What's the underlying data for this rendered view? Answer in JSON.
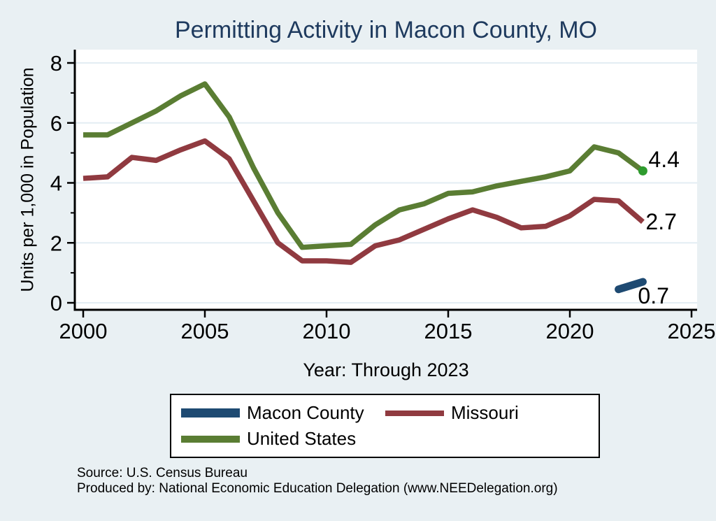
{
  "chart_data": {
    "type": "line",
    "title": "Permitting Activity in Macon County, MO",
    "xlabel": "Year: Through 2023",
    "ylabel": "Units per 1,000 in Population",
    "xlim": [
      2000,
      2025
    ],
    "ylim": [
      0,
      8
    ],
    "x_ticks": [
      2000,
      2005,
      2010,
      2015,
      2020,
      2025
    ],
    "y_ticks": [
      0,
      2,
      4,
      6,
      8
    ],
    "y_minor_ticks": [
      1,
      3,
      5,
      7
    ],
    "grid": "horizontal",
    "legend_position": "bottom",
    "x": [
      2000,
      2001,
      2002,
      2003,
      2004,
      2005,
      2006,
      2007,
      2008,
      2009,
      2010,
      2011,
      2012,
      2013,
      2014,
      2015,
      2016,
      2017,
      2018,
      2019,
      2020,
      2021,
      2022,
      2023
    ],
    "series": [
      {
        "id": "macon",
        "name": "Macon County",
        "color": "#1e4a72",
        "end_label": "0.7",
        "values": [
          null,
          null,
          null,
          null,
          null,
          null,
          null,
          null,
          null,
          null,
          null,
          null,
          null,
          null,
          null,
          null,
          null,
          null,
          null,
          null,
          null,
          null,
          0.45,
          0.7
        ]
      },
      {
        "id": "missouri",
        "name": "Missouri",
        "color": "#903a40",
        "end_label": "2.7",
        "values": [
          4.15,
          4.2,
          4.85,
          4.75,
          5.1,
          5.4,
          4.8,
          3.4,
          2.0,
          1.4,
          1.4,
          1.35,
          1.9,
          2.1,
          2.45,
          2.8,
          3.1,
          2.85,
          2.5,
          2.55,
          2.9,
          3.45,
          3.4,
          2.7
        ]
      },
      {
        "id": "us",
        "name": "United States",
        "color": "#5a7d33",
        "end_label": "4.4",
        "end_marker": true,
        "marker_color": "#2e9b2e",
        "values": [
          5.6,
          5.6,
          6.0,
          6.4,
          6.9,
          7.3,
          6.2,
          4.5,
          3.0,
          1.85,
          1.9,
          1.95,
          2.6,
          3.1,
          3.3,
          3.65,
          3.7,
          3.9,
          4.05,
          4.2,
          4.4,
          5.2,
          5.0,
          4.4
        ]
      }
    ]
  },
  "footer": {
    "source": "Source: U.S. Census Bureau",
    "produced_by": "Produced by: National Economic Education Delegation (www.NEEDelegation.org)"
  },
  "colors": {
    "background": "#e9f0f3",
    "plot_background": "#ffffff",
    "grid": "#e3edf3",
    "axis": "#000000",
    "title": "#1e3a5e"
  }
}
